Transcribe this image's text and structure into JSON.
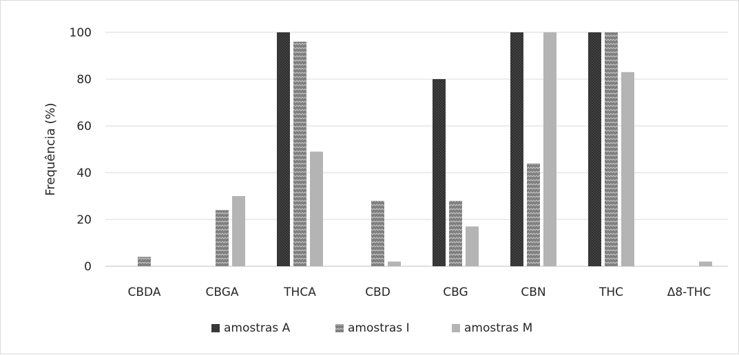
{
  "chart_data": {
    "type": "bar",
    "title": "",
    "xlabel": "",
    "ylabel": "Frequência (%)",
    "ylim": [
      0,
      100
    ],
    "yticks": [
      0,
      20,
      40,
      60,
      80,
      100
    ],
    "ytick_labels": [
      "0",
      "20",
      "40",
      "60",
      "80",
      "100"
    ],
    "grid": true,
    "legend_position": "bottom",
    "categories": [
      "CBDA",
      "CBGA",
      "THCA",
      "CBD",
      "CBG",
      "CBN",
      "THC",
      "Δ8-THC"
    ],
    "series": [
      {
        "name": "amostras A",
        "color": "#3a3a3a",
        "pattern": "dark-dots",
        "values": [
          0,
          0,
          100,
          0,
          80,
          100,
          100,
          0
        ]
      },
      {
        "name": "amostras I",
        "color": "#8c8c8c",
        "pattern": "zigzag",
        "values": [
          4,
          24,
          96,
          28,
          28,
          44,
          100,
          0
        ]
      },
      {
        "name": "amostras M",
        "color": "#b4b4b4",
        "pattern": "solid",
        "values": [
          0,
          30,
          49,
          2,
          17,
          100,
          83,
          2
        ]
      }
    ]
  }
}
